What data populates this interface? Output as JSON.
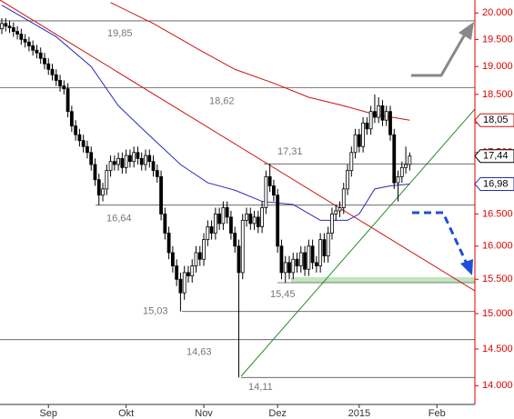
{
  "chart_data": {
    "type": "candlestick",
    "log_scale": true,
    "ylim": [
      13.75,
      20.25
    ],
    "yticks": [
      {
        "value": 14,
        "label": "14.000"
      },
      {
        "value": 14.5,
        "label": "14.500"
      },
      {
        "value": 15,
        "label": "15.000"
      },
      {
        "value": 15.5,
        "label": "15.500"
      },
      {
        "value": 16,
        "label": "16.000"
      },
      {
        "value": 16.5,
        "label": "16.500"
      },
      {
        "value": 17,
        "label": "17.000"
      },
      {
        "value": 17.5,
        "label": "17.500"
      },
      {
        "value": 18,
        "label": "18.000"
      },
      {
        "value": 18.5,
        "label": "18.500"
      },
      {
        "value": 19,
        "label": "19.000"
      },
      {
        "value": 19.5,
        "label": "19.500"
      },
      {
        "value": 20,
        "label": "20.000"
      }
    ],
    "categories": [
      null,
      null,
      null,
      null,
      null,
      null,
      null,
      null,
      null,
      null,
      null,
      null,
      "Sep",
      null,
      null,
      null,
      null,
      null,
      null,
      null,
      null,
      null,
      null,
      null,
      null,
      null,
      null,
      null,
      null,
      null,
      null,
      null,
      "Okt",
      null,
      null,
      null,
      null,
      null,
      null,
      null,
      null,
      null,
      null,
      null,
      null,
      null,
      null,
      null,
      null,
      null,
      null,
      null,
      "Nov",
      null,
      null,
      null,
      null,
      null,
      null,
      null,
      null,
      null,
      null,
      null,
      null,
      null,
      null,
      null,
      null,
      null,
      null,
      "Dez",
      null,
      null,
      null,
      null,
      null,
      null,
      null,
      null,
      null,
      null,
      null,
      null,
      null,
      null,
      null,
      null,
      null,
      null,
      null,
      null,
      "2015",
      null,
      null,
      null,
      null,
      null,
      null,
      null,
      null,
      null,
      null,
      null,
      null,
      null,
      null,
      null,
      null,
      null,
      null,
      null,
      "Feb"
    ],
    "open": [
      19.7,
      19.8,
      19.75,
      19.72,
      19.65,
      19.6,
      19.5,
      19.45,
      19.38,
      19.3,
      19.25,
      19.15,
      19.05,
      18.95,
      18.85,
      18.75,
      18.65,
      18.6,
      18.2,
      17.95,
      17.8,
      17.7,
      17.6,
      17.5,
      17.3,
      17.05,
      16.8,
      16.9,
      17.2,
      17.35,
      17.3,
      17.4,
      17.25,
      17.45,
      17.35,
      17.5,
      17.4,
      17.3,
      17.45,
      17.35,
      17.2,
      17.1,
      16.5,
      16.2,
      15.9,
      15.7,
      15.5,
      15.3,
      15.6,
      15.55,
      15.7,
      15.9,
      15.8,
      16.1,
      16.3,
      16.2,
      16.5,
      16.35,
      16.6,
      16.45,
      16.2,
      16.0,
      15.6,
      16.4,
      16.5,
      16.35,
      16.45,
      16.3,
      16.6,
      17.1,
      16.95,
      16.8,
      16.0,
      15.6,
      15.75,
      15.6,
      15.8,
      15.7,
      15.9,
      15.65,
      16.0,
      15.75,
      15.7,
      16.1,
      15.85,
      16.2,
      16.5,
      16.55,
      16.6,
      16.9,
      17.2,
      17.5,
      17.8,
      17.6,
      18.0,
      17.9,
      18.2,
      18.1,
      18.3,
      18.05,
      18.2,
      17.8,
      17.0,
      17.1,
      17.25,
      17.3,
      null,
      null,
      null,
      null,
      null,
      null,
      null
    ],
    "high": [
      19.9,
      19.9,
      19.85,
      19.82,
      19.75,
      19.7,
      19.6,
      19.55,
      19.48,
      19.4,
      19.35,
      19.25,
      19.15,
      19.05,
      18.95,
      18.85,
      18.75,
      18.7,
      18.3,
      18.05,
      17.9,
      17.8,
      17.7,
      17.6,
      17.4,
      17.15,
      17.0,
      17.3,
      17.45,
      17.45,
      17.5,
      17.5,
      17.55,
      17.55,
      17.6,
      17.6,
      17.5,
      17.55,
      17.55,
      17.45,
      17.3,
      17.2,
      16.6,
      16.3,
      16.0,
      15.8,
      15.6,
      15.7,
      15.7,
      15.8,
      16.0,
      16.0,
      16.2,
      16.4,
      16.4,
      16.6,
      16.6,
      16.7,
      16.7,
      16.55,
      16.3,
      16.1,
      16.5,
      16.6,
      16.6,
      16.55,
      16.55,
      16.7,
      17.2,
      17.31,
      17.05,
      16.9,
      16.1,
      15.85,
      15.85,
      15.9,
      15.9,
      16.0,
      16.0,
      16.1,
      16.1,
      15.85,
      16.2,
      16.2,
      16.3,
      16.6,
      16.65,
      16.7,
      17.0,
      17.3,
      17.6,
      17.9,
      17.9,
      18.1,
      18.1,
      18.3,
      18.5,
      18.45,
      18.4,
      18.3,
      18.3,
      17.9,
      17.2,
      17.35,
      17.6,
      17.5,
      null,
      null,
      null,
      null,
      null,
      null,
      null
    ],
    "low": [
      19.6,
      19.65,
      19.62,
      19.55,
      19.5,
      19.4,
      19.35,
      19.28,
      19.2,
      19.15,
      19.05,
      18.95,
      18.85,
      18.75,
      18.65,
      18.55,
      18.5,
      18.1,
      17.85,
      17.7,
      17.6,
      17.5,
      17.4,
      17.2,
      16.95,
      16.64,
      16.7,
      16.8,
      17.1,
      17.2,
      17.2,
      17.15,
      17.15,
      17.25,
      17.25,
      17.3,
      17.2,
      17.2,
      17.25,
      17.1,
      17.0,
      16.4,
      16.1,
      15.8,
      15.6,
      15.4,
      15.03,
      15.2,
      15.45,
      15.45,
      15.6,
      15.7,
      15.7,
      16.0,
      16.1,
      16.1,
      16.25,
      16.25,
      16.35,
      16.1,
      15.9,
      14.11,
      15.5,
      16.3,
      16.25,
      16.25,
      16.2,
      16.2,
      16.5,
      16.85,
      16.7,
      15.9,
      15.5,
      15.45,
      15.5,
      15.5,
      15.6,
      15.6,
      15.55,
      15.55,
      15.65,
      15.6,
      15.6,
      15.75,
      15.75,
      16.1,
      16.4,
      16.45,
      16.5,
      16.8,
      17.1,
      17.4,
      17.5,
      17.5,
      17.8,
      17.8,
      18.0,
      18.0,
      17.95,
      17.95,
      17.7,
      16.9,
      16.7,
      17.0,
      17.15,
      17.2,
      null,
      null,
      null,
      null,
      null,
      null,
      null
    ],
    "close": [
      19.8,
      19.75,
      19.72,
      19.65,
      19.6,
      19.5,
      19.45,
      19.38,
      19.3,
      19.25,
      19.15,
      19.05,
      18.95,
      18.85,
      18.75,
      18.65,
      18.6,
      18.2,
      17.95,
      17.8,
      17.7,
      17.6,
      17.5,
      17.3,
      17.05,
      16.8,
      16.9,
      17.2,
      17.35,
      17.3,
      17.4,
      17.25,
      17.45,
      17.35,
      17.5,
      17.4,
      17.3,
      17.45,
      17.35,
      17.2,
      17.1,
      16.5,
      16.2,
      15.9,
      15.7,
      15.5,
      15.3,
      15.6,
      15.55,
      15.7,
      15.9,
      15.8,
      16.1,
      16.3,
      16.2,
      16.5,
      16.35,
      16.6,
      16.45,
      16.2,
      16.0,
      15.6,
      16.4,
      16.5,
      16.35,
      16.45,
      16.3,
      16.6,
      17.1,
      16.95,
      16.8,
      16.0,
      15.6,
      15.75,
      15.6,
      15.8,
      15.7,
      15.9,
      15.65,
      16.0,
      15.75,
      15.7,
      16.1,
      15.85,
      16.2,
      16.5,
      16.55,
      16.6,
      16.9,
      17.2,
      17.5,
      17.8,
      17.6,
      18.0,
      17.9,
      18.2,
      18.1,
      18.3,
      18.05,
      18.2,
      17.8,
      17.0,
      17.1,
      17.25,
      17.3,
      17.44,
      null,
      null,
      null,
      null,
      null,
      null,
      null
    ],
    "series": [
      {
        "color": "#2a2ab8",
        "x": [
          0,
          14,
          23,
          30,
          37,
          46,
          53,
          60,
          67,
          75,
          82,
          89,
          92,
          96,
          100,
          105
        ],
        "values": [
          20.15,
          19.55,
          19.0,
          18.3,
          17.85,
          17.3,
          17.0,
          16.88,
          16.7,
          16.65,
          16.4,
          16.4,
          16.5,
          16.9,
          16.95,
          16.98
        ]
      },
      {
        "color": "#cc1111",
        "x": [
          28,
          39,
          51,
          60,
          70,
          79,
          88,
          96,
          105
        ],
        "values": [
          20.2,
          19.8,
          19.3,
          18.95,
          18.7,
          18.45,
          18.3,
          18.15,
          18.05
        ]
      }
    ],
    "levels": [
      {
        "value": 19.85,
        "label": "19,85"
      },
      {
        "value": 18.62,
        "label": "18,62"
      },
      {
        "value": 17.31,
        "label": "17,31"
      },
      {
        "value": 16.64,
        "label": "16,64"
      },
      {
        "value": 15.45,
        "label": "15,45"
      },
      {
        "value": 15.03,
        "label": "15,03"
      },
      {
        "value": 14.63,
        "label": "14,63"
      },
      {
        "value": 14.11,
        "label": "14,11"
      }
    ],
    "price_tags": [
      {
        "value": 18.05,
        "label": "18,05",
        "color": "#cc1111"
      },
      {
        "value": 17.44,
        "label": "17,44",
        "color": "#000000"
      },
      {
        "value": 16.98,
        "label": "16,98",
        "color": "#2a2ab8"
      }
    ]
  }
}
